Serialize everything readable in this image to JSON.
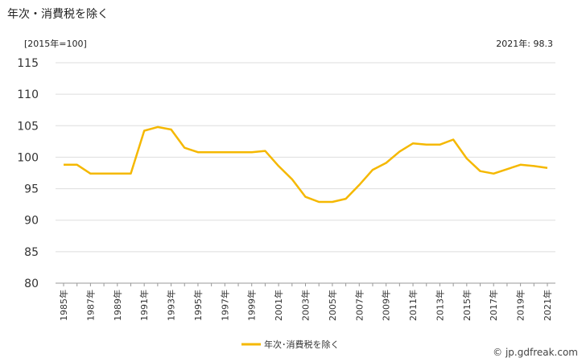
{
  "title": "年次・消費税を除く",
  "unit_note": "[2015年=100]",
  "latest_note": "2021年: 98.3",
  "credit": "© jp.gdfreak.com",
  "colors": {
    "line": "#F5B800",
    "grid": "#dddddd",
    "axis": "#999999"
  },
  "chart_data": {
    "type": "line",
    "title": "年次・消費税を除く",
    "xlabel": "",
    "ylabel": "[2015年=100]",
    "ylim": [
      80,
      115
    ],
    "yticks": [
      80,
      85,
      90,
      95,
      100,
      105,
      110,
      115
    ],
    "grid": true,
    "legend_position": "bottom-center",
    "x": [
      "1985年",
      "1986年",
      "1987年",
      "1988年",
      "1989年",
      "1990年",
      "1991年",
      "1992年",
      "1993年",
      "1994年",
      "1995年",
      "1996年",
      "1997年",
      "1998年",
      "1999年",
      "2000年",
      "2001年",
      "2002年",
      "2003年",
      "2004年",
      "2005年",
      "2006年",
      "2007年",
      "2008年",
      "2009年",
      "2010年",
      "2011年",
      "2012年",
      "2013年",
      "2014年",
      "2015年",
      "2016年",
      "2017年",
      "2018年",
      "2019年",
      "2020年",
      "2021年"
    ],
    "xtick_labels": [
      "1985年",
      "1987年",
      "1989年",
      "1991年",
      "1993年",
      "1995年",
      "1997年",
      "1999年",
      "2001年",
      "2003年",
      "2005年",
      "2007年",
      "2009年",
      "2011年",
      "2013年",
      "2015年",
      "2017年",
      "2019年",
      "2021年"
    ],
    "series": [
      {
        "name": "年次･消費税を除く",
        "values": [
          98.8,
          98.8,
          97.4,
          97.4,
          97.4,
          97.4,
          104.2,
          104.8,
          104.4,
          101.5,
          100.8,
          100.8,
          100.8,
          100.8,
          100.8,
          101.0,
          98.6,
          96.5,
          93.7,
          92.9,
          92.9,
          93.4,
          95.6,
          98.0,
          99.1,
          100.9,
          102.2,
          102.0,
          102.0,
          102.8,
          99.8,
          97.8,
          97.4,
          98.1,
          98.8,
          98.6,
          98.3
        ]
      }
    ]
  }
}
